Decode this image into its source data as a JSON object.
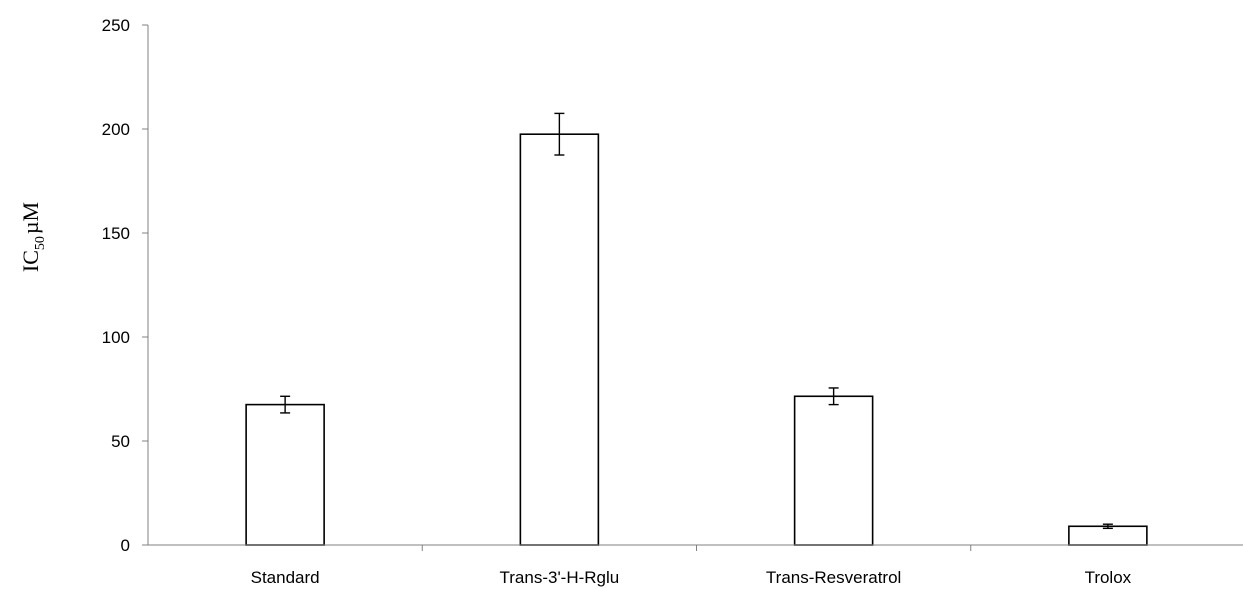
{
  "chart_data": {
    "type": "bar",
    "title": "",
    "xlabel": "",
    "ylabel": {
      "main": "IC",
      "subscript": "50",
      "unit": "µM"
    },
    "categories": [
      "Standard",
      "Trans-3'-H-Rglu",
      "Trans-Resveratrol",
      "Trolox"
    ],
    "series": [
      {
        "values": [
          67.5,
          197.5,
          71.5,
          9
        ],
        "errors": [
          4,
          10,
          4,
          1
        ]
      }
    ],
    "ylim": [
      0,
      250
    ],
    "yticks": [
      "0",
      "50",
      "100",
      "150",
      "200",
      "250"
    ],
    "grid": false,
    "legend": "none",
    "colors": {
      "bar_fill": "#ffffff",
      "bar_stroke": "#000000",
      "axis": "#808080"
    }
  }
}
